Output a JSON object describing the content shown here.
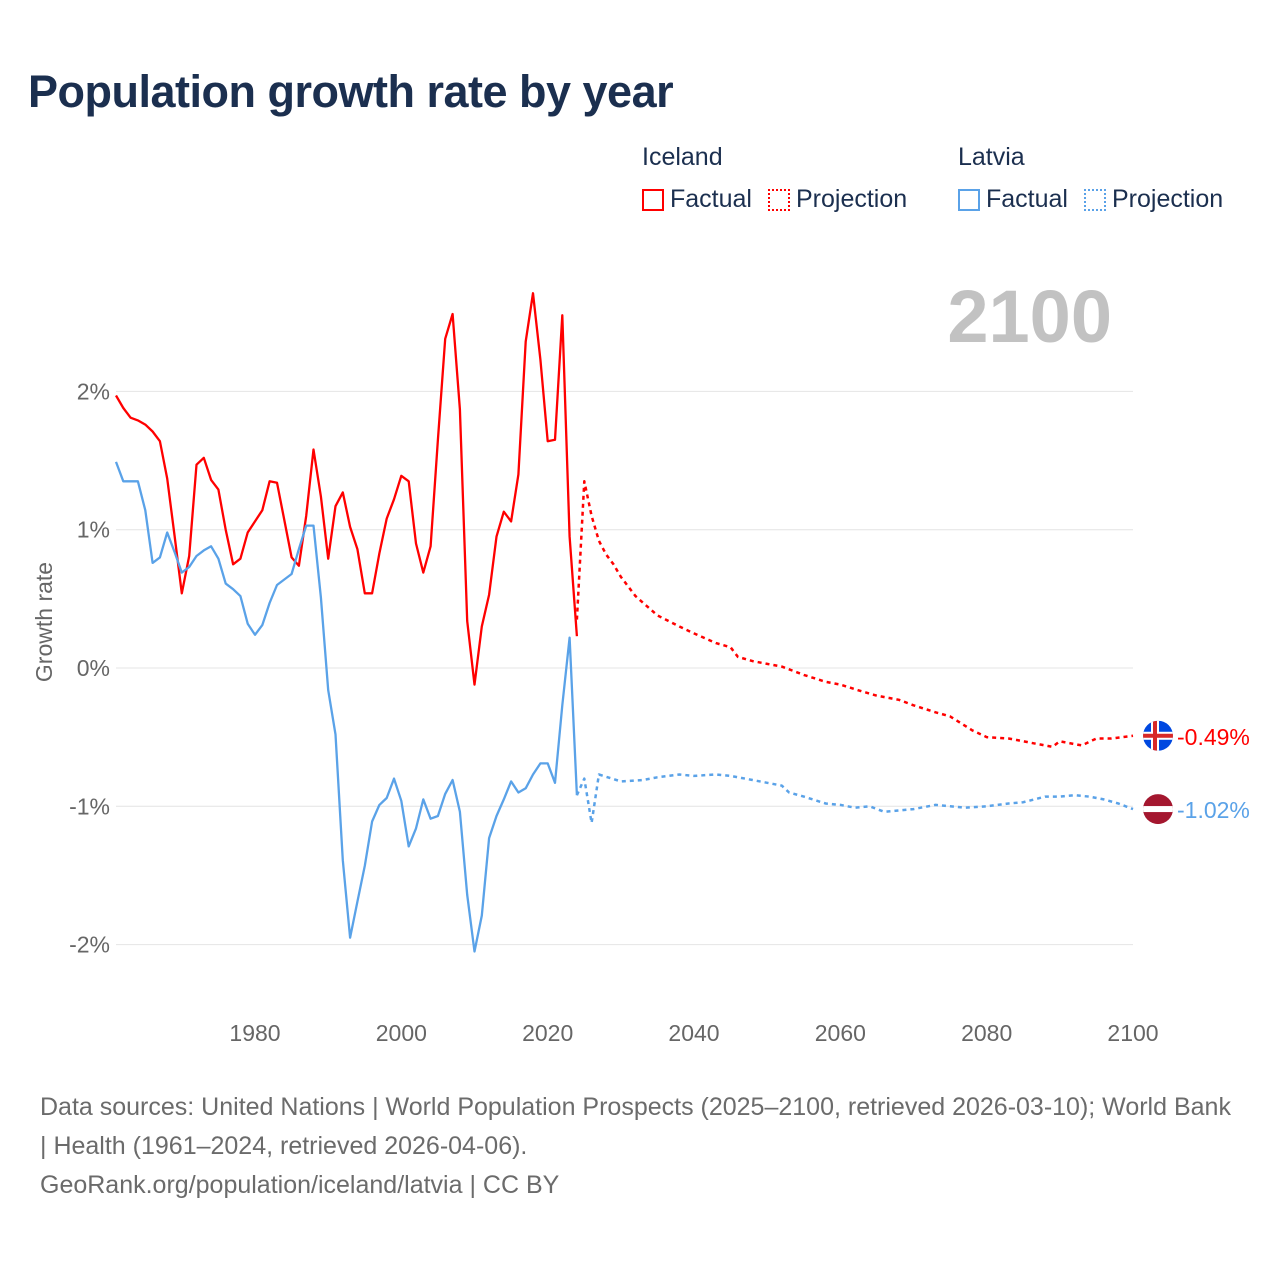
{
  "chart_data": {
    "type": "line",
    "title": "Population growth rate by year",
    "xlabel": "",
    "ylabel": "Growth rate",
    "xlim": [
      1961,
      2100
    ],
    "ylim": [
      -2.5,
      2.9
    ],
    "x_ticks": [
      1980,
      2000,
      2020,
      2040,
      2060,
      2080,
      2100
    ],
    "x_tick_labels": [
      "1980",
      "2000",
      "2020",
      "2040",
      "2060",
      "2080",
      "2100"
    ],
    "y_ticks": [
      2,
      1,
      0,
      -1,
      -2
    ],
    "y_tick_labels": [
      "2%",
      "1%",
      "0%",
      "-1%",
      "-2%"
    ],
    "grid": true,
    "legend_placement": "top-right",
    "year_label": "2100",
    "legend": {
      "groups": [
        {
          "name": "Iceland",
          "items": [
            "Factual",
            "Projection"
          ]
        },
        {
          "name": "Latvia",
          "items": [
            "Factual",
            "Projection"
          ]
        }
      ]
    },
    "series": [
      {
        "name": "Iceland Factual",
        "color": "#ff0000",
        "style": "solid",
        "x": [
          1961,
          1962,
          1963,
          1964,
          1965,
          1966,
          1967,
          1968,
          1969,
          1970,
          1971,
          1972,
          1973,
          1974,
          1975,
          1976,
          1977,
          1978,
          1979,
          1980,
          1981,
          1982,
          1983,
          1984,
          1985,
          1986,
          1987,
          1988,
          1989,
          1990,
          1991,
          1992,
          1993,
          1994,
          1995,
          1996,
          1997,
          1998,
          1999,
          2000,
          2001,
          2002,
          2003,
          2004,
          2005,
          2006,
          2007,
          2008,
          2009,
          2010,
          2011,
          2012,
          2013,
          2014,
          2015,
          2016,
          2017,
          2018,
          2019,
          2020,
          2021,
          2022,
          2023,
          2024
        ],
        "y": [
          1.97,
          1.88,
          1.81,
          1.79,
          1.76,
          1.71,
          1.64,
          1.37,
          0.96,
          0.54,
          0.81,
          1.47,
          1.52,
          1.36,
          1.29,
          1.0,
          0.75,
          0.79,
          0.98,
          1.06,
          1.14,
          1.35,
          1.34,
          1.07,
          0.8,
          0.74,
          1.1,
          1.58,
          1.24,
          0.79,
          1.17,
          1.27,
          1.02,
          0.86,
          0.54,
          0.54,
          0.83,
          1.08,
          1.22,
          1.39,
          1.35,
          0.9,
          0.69,
          0.88,
          1.65,
          2.38,
          2.56,
          1.87,
          0.34,
          -0.12,
          0.3,
          0.53,
          0.95,
          1.13,
          1.06,
          1.4,
          2.36,
          2.71,
          2.23,
          1.64,
          1.65,
          2.55,
          0.95,
          0.23
        ]
      },
      {
        "name": "Iceland Projection",
        "color": "#ff0000",
        "style": "dotted",
        "x": [
          2024,
          2025,
          2026,
          2027,
          2028,
          2029,
          2030,
          2032,
          2035,
          2038,
          2040,
          2043,
          2045,
          2046,
          2048,
          2050,
          2052,
          2055,
          2058,
          2060,
          2063,
          2065,
          2068,
          2070,
          2073,
          2075,
          2078,
          2080,
          2083,
          2085,
          2087,
          2089,
          2090,
          2092,
          2093,
          2095,
          2097,
          2100
        ],
        "y": [
          0.35,
          1.35,
          1.1,
          0.92,
          0.82,
          0.75,
          0.66,
          0.52,
          0.38,
          0.3,
          0.25,
          0.18,
          0.15,
          0.08,
          0.05,
          0.03,
          0.01,
          -0.05,
          -0.1,
          -0.12,
          -0.17,
          -0.2,
          -0.23,
          -0.27,
          -0.32,
          -0.35,
          -0.45,
          -0.5,
          -0.51,
          -0.53,
          -0.55,
          -0.57,
          -0.53,
          -0.55,
          -0.56,
          -0.51,
          -0.51,
          -0.49
        ]
      },
      {
        "name": "Latvia Factual",
        "color": "#5aa2e8",
        "style": "solid",
        "x": [
          1961,
          1962,
          1963,
          1964,
          1965,
          1966,
          1967,
          1968,
          1969,
          1970,
          1971,
          1972,
          1973,
          1974,
          1975,
          1976,
          1977,
          1978,
          1979,
          1980,
          1981,
          1982,
          1983,
          1984,
          1985,
          1986,
          1987,
          1988,
          1989,
          1990,
          1991,
          1992,
          1993,
          1994,
          1995,
          1996,
          1997,
          1998,
          1999,
          2000,
          2001,
          2002,
          2003,
          2004,
          2005,
          2006,
          2007,
          2008,
          2009,
          2010,
          2011,
          2012,
          2013,
          2014,
          2015,
          2016,
          2017,
          2018,
          2019,
          2020,
          2021,
          2022,
          2023,
          2024
        ],
        "y": [
          1.49,
          1.35,
          1.35,
          1.35,
          1.14,
          0.76,
          0.8,
          0.98,
          0.84,
          0.69,
          0.73,
          0.81,
          0.85,
          0.88,
          0.79,
          0.61,
          0.57,
          0.52,
          0.32,
          0.24,
          0.31,
          0.47,
          0.6,
          0.64,
          0.68,
          0.86,
          1.03,
          1.03,
          0.51,
          -0.16,
          -0.48,
          -1.39,
          -1.95,
          -1.69,
          -1.43,
          -1.11,
          -0.99,
          -0.94,
          -0.8,
          -0.96,
          -1.29,
          -1.16,
          -0.95,
          -1.09,
          -1.07,
          -0.91,
          -0.81,
          -1.04,
          -1.64,
          -2.05,
          -1.79,
          -1.23,
          -1.07,
          -0.95,
          -0.82,
          -0.9,
          -0.87,
          -0.77,
          -0.69,
          -0.69,
          -0.83,
          -0.27,
          0.22,
          -0.92
        ]
      },
      {
        "name": "Latvia Projection",
        "color": "#5aa2e8",
        "style": "dotted",
        "x": [
          2024,
          2025,
          2026,
          2027,
          2030,
          2033,
          2035,
          2038,
          2040,
          2043,
          2045,
          2048,
          2050,
          2052,
          2053,
          2055,
          2058,
          2060,
          2062,
          2064,
          2066,
          2068,
          2070,
          2073,
          2075,
          2077,
          2080,
          2083,
          2085,
          2088,
          2090,
          2092,
          2094,
          2096,
          2098,
          2100
        ],
        "y": [
          -0.92,
          -0.8,
          -1.12,
          -0.77,
          -0.82,
          -0.81,
          -0.79,
          -0.77,
          -0.78,
          -0.77,
          -0.78,
          -0.81,
          -0.83,
          -0.85,
          -0.9,
          -0.93,
          -0.98,
          -0.99,
          -1.01,
          -1.0,
          -1.04,
          -1.03,
          -1.02,
          -0.99,
          -1.0,
          -1.01,
          -1.0,
          -0.98,
          -0.97,
          -0.93,
          -0.93,
          -0.92,
          -0.93,
          -0.95,
          -0.98,
          -1.02
        ]
      }
    ],
    "end_labels": [
      {
        "country": "Iceland",
        "text": "-0.49%",
        "value": -0.49,
        "color": "#ff0000"
      },
      {
        "country": "Latvia",
        "text": "-1.02%",
        "value": -1.02,
        "color": "#5aa2e8"
      }
    ]
  },
  "footer": {
    "sources": "Data sources: United Nations | World Population Prospects (2025–2100, retrieved 2026-03-10); World Bank | Health (1961–2024, retrieved 2026-04-06).",
    "link": "GeoRank.org/population/iceland/latvia | CC BY"
  }
}
